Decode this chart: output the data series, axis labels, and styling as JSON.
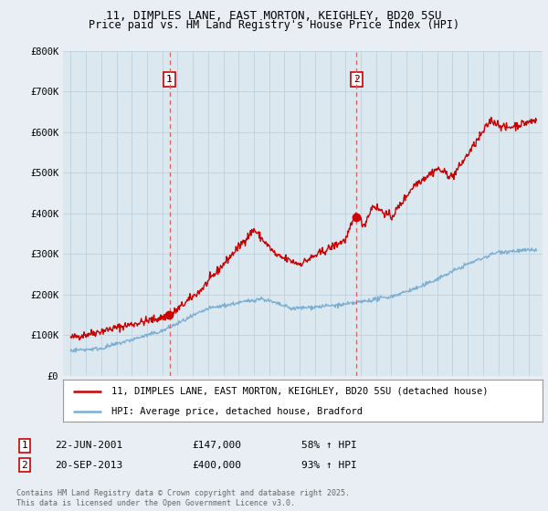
{
  "title": "11, DIMPLES LANE, EAST MORTON, KEIGHLEY, BD20 5SU",
  "subtitle": "Price paid vs. HM Land Registry's House Price Index (HPI)",
  "ylim": [
    0,
    800000
  ],
  "yticks": [
    0,
    100000,
    200000,
    300000,
    400000,
    500000,
    600000,
    700000,
    800000
  ],
  "ytick_labels": [
    "£0",
    "£100K",
    "£200K",
    "£300K",
    "£400K",
    "£500K",
    "£600K",
    "£700K",
    "£800K"
  ],
  "background_color": "#e8eef4",
  "plot_bg_color": "#dce8f0",
  "grid_color": "#b8ccd8",
  "red_color": "#cc0000",
  "blue_color": "#7bafd4",
  "vline_color": "#e06060",
  "sale1_year": 2001.47,
  "sale2_year": 2013.72,
  "sale1_price": 147000,
  "sale2_price": 400000,
  "legend_label_red": "11, DIMPLES LANE, EAST MORTON, KEIGHLEY, BD20 5SU (detached house)",
  "legend_label_blue": "HPI: Average price, detached house, Bradford",
  "sale1_date": "22-JUN-2001",
  "sale1_amount": "£147,000",
  "sale1_hpi": "58% ↑ HPI",
  "sale2_date": "20-SEP-2013",
  "sale2_amount": "£400,000",
  "sale2_hpi": "93% ↑ HPI",
  "footer": "Contains HM Land Registry data © Crown copyright and database right 2025.\nThis data is licensed under the Open Government Licence v3.0.",
  "title_fontsize": 9,
  "subtitle_fontsize": 8.5,
  "xmin": 1994.5,
  "xmax": 2025.9
}
